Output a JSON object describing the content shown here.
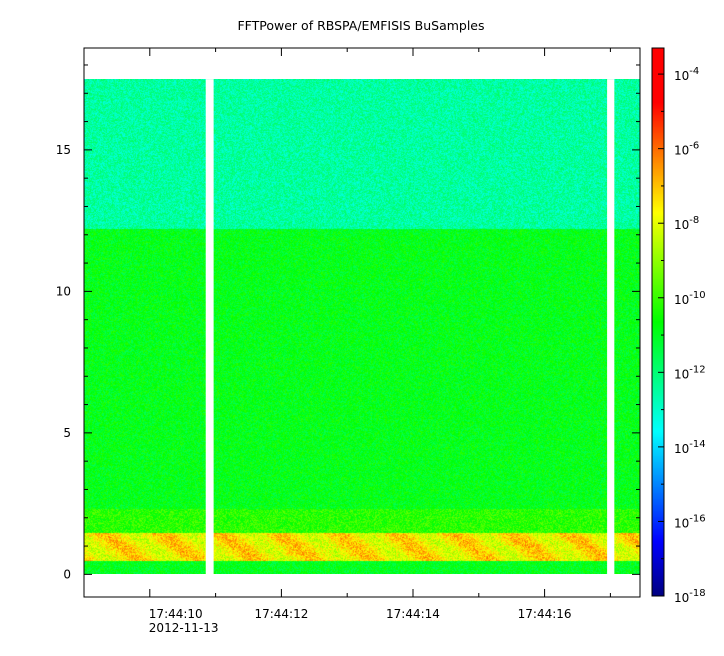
{
  "chart_data": {
    "type": "heatmap",
    "title": "FFTPower of RBSPA/EMFISIS  BuSamples",
    "xlabel": "",
    "ylabel": "",
    "x_ticks": [
      {
        "label": "17:44:10",
        "t": 10,
        "sub": "2012-11-13"
      },
      {
        "label": "17:44:12",
        "t": 12
      },
      {
        "label": "17:44:14",
        "t": 14
      },
      {
        "label": "17:44:16",
        "t": 16
      }
    ],
    "x_minor_step": 1,
    "xlim": [
      9.0,
      17.45
    ],
    "y_ticks": [
      0,
      5,
      10,
      15
    ],
    "y_minor_step": 1,
    "ylim": [
      -0.8,
      18.6
    ],
    "y_data_range": [
      0,
      17.5
    ],
    "data_gaps_x": [
      [
        10.85,
        10.97
      ],
      [
        16.95,
        17.06
      ]
    ],
    "bands": [
      {
        "y": [
          0.0,
          0.45
        ],
        "log_power": -11.0,
        "note": "lower green"
      },
      {
        "y": [
          0.45,
          1.45
        ],
        "log_power": -7.6,
        "note": "orange/red emission line"
      },
      {
        "y": [
          1.45,
          2.3
        ],
        "log_power": -10.2,
        "note": "yellow-green transition"
      },
      {
        "y": [
          2.3,
          12.2
        ],
        "log_power": -10.9,
        "note": "green background"
      },
      {
        "y": [
          12.2,
          17.5
        ],
        "log_power": -12.5,
        "note": "cyan-green upper region"
      }
    ],
    "colorbar": {
      "scale": "log",
      "range": [
        -18,
        -3.3
      ],
      "ticks": [
        {
          "base": "10",
          "exp": "-4",
          "value": -4
        },
        {
          "base": "10",
          "exp": "-6",
          "value": -6
        },
        {
          "base": "10",
          "exp": "-8",
          "value": -8
        },
        {
          "base": "10",
          "exp": "-10",
          "value": -10
        },
        {
          "base": "10",
          "exp": "-12",
          "value": -12
        },
        {
          "base": "10",
          "exp": "-14",
          "value": -14
        },
        {
          "base": "10",
          "exp": "-16",
          "value": -16
        },
        {
          "base": "10",
          "exp": "-18",
          "value": -18
        }
      ],
      "colors": [
        "#000080",
        "#0000ff",
        "#0080ff",
        "#00ffff",
        "#00ff80",
        "#00ff00",
        "#80ff00",
        "#ffff00",
        "#ff8000",
        "#ff0000",
        "#ff0000"
      ]
    }
  }
}
